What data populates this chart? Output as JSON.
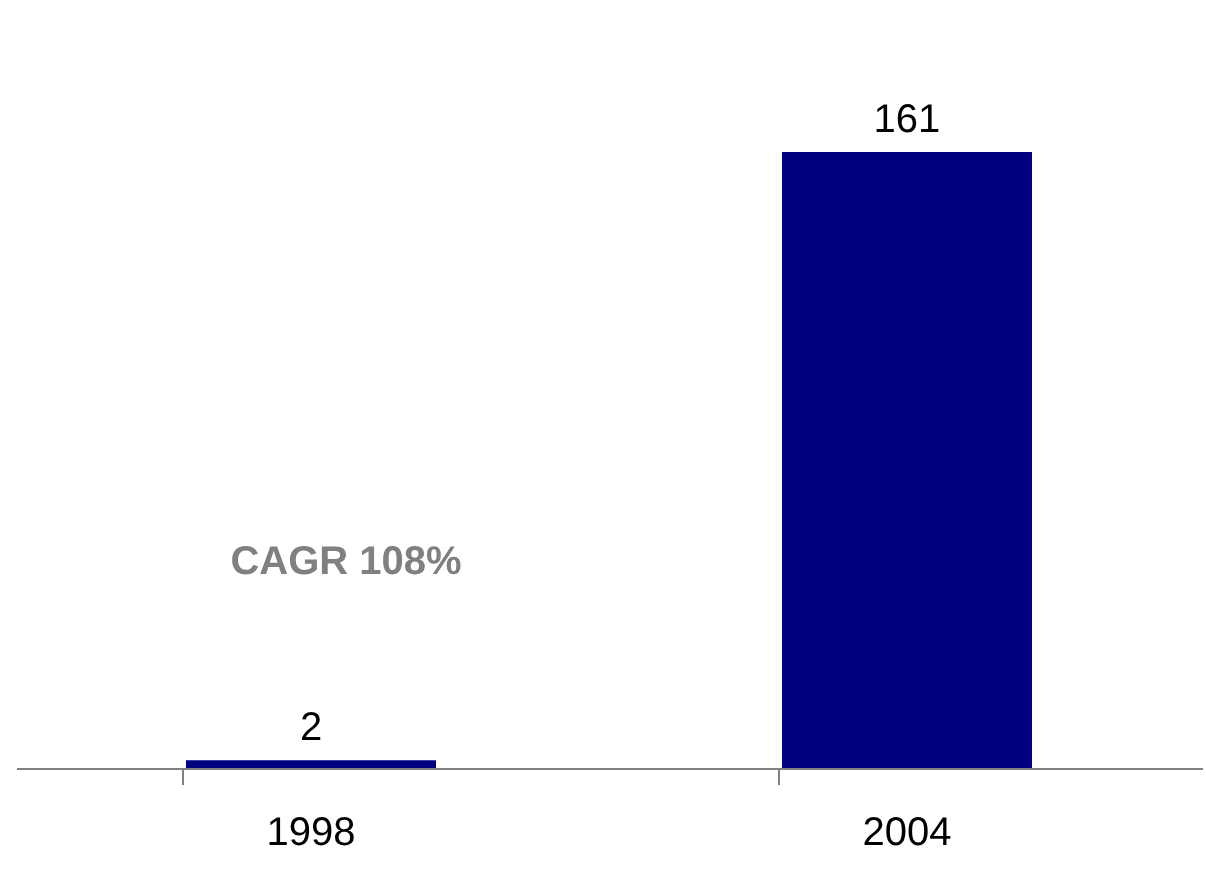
{
  "chart_data": {
    "type": "bar",
    "categories": [
      "1998",
      "2004"
    ],
    "values": [
      2,
      161
    ],
    "color": "#000080",
    "data_labels": true,
    "annotations": [
      "CAGR 108%"
    ]
  }
}
